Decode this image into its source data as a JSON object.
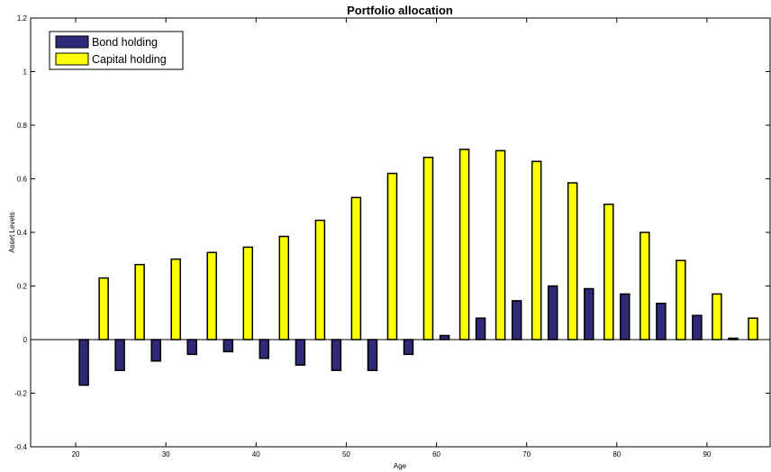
{
  "chart_data": {
    "type": "bar",
    "title": "Portfolio allocation",
    "xlabel": "Age",
    "ylabel": "Asset Levels",
    "xlim": [
      15,
      97
    ],
    "ylim": [
      -0.4,
      1.2
    ],
    "xticks": [
      20,
      30,
      40,
      50,
      60,
      70,
      80,
      90
    ],
    "yticks": [
      -0.4,
      -0.2,
      0,
      0.2,
      0.4,
      0.6,
      0.8,
      1,
      1.2
    ],
    "grid": false,
    "legend_position": "top-left",
    "x": [
      22,
      26,
      30,
      34,
      38,
      42,
      46,
      50,
      54,
      58,
      62,
      66,
      70,
      74,
      78,
      82,
      86,
      90,
      94
    ],
    "series": [
      {
        "name": "Bond holding",
        "color": "#2e2a78",
        "values": [
          -0.17,
          -0.115,
          -0.08,
          -0.055,
          -0.045,
          -0.07,
          -0.095,
          -0.115,
          -0.115,
          -0.055,
          0.015,
          0.08,
          0.145,
          0.2,
          0.19,
          0.17,
          0.135,
          0.09,
          0.005
        ]
      },
      {
        "name": "Capital holding",
        "color": "#ffff00",
        "values": [
          0.23,
          0.28,
          0.3,
          0.325,
          0.345,
          0.385,
          0.445,
          0.53,
          0.62,
          0.68,
          0.71,
          0.705,
          0.665,
          0.585,
          0.505,
          0.4,
          0.295,
          0.17,
          0.08
        ]
      }
    ]
  }
}
